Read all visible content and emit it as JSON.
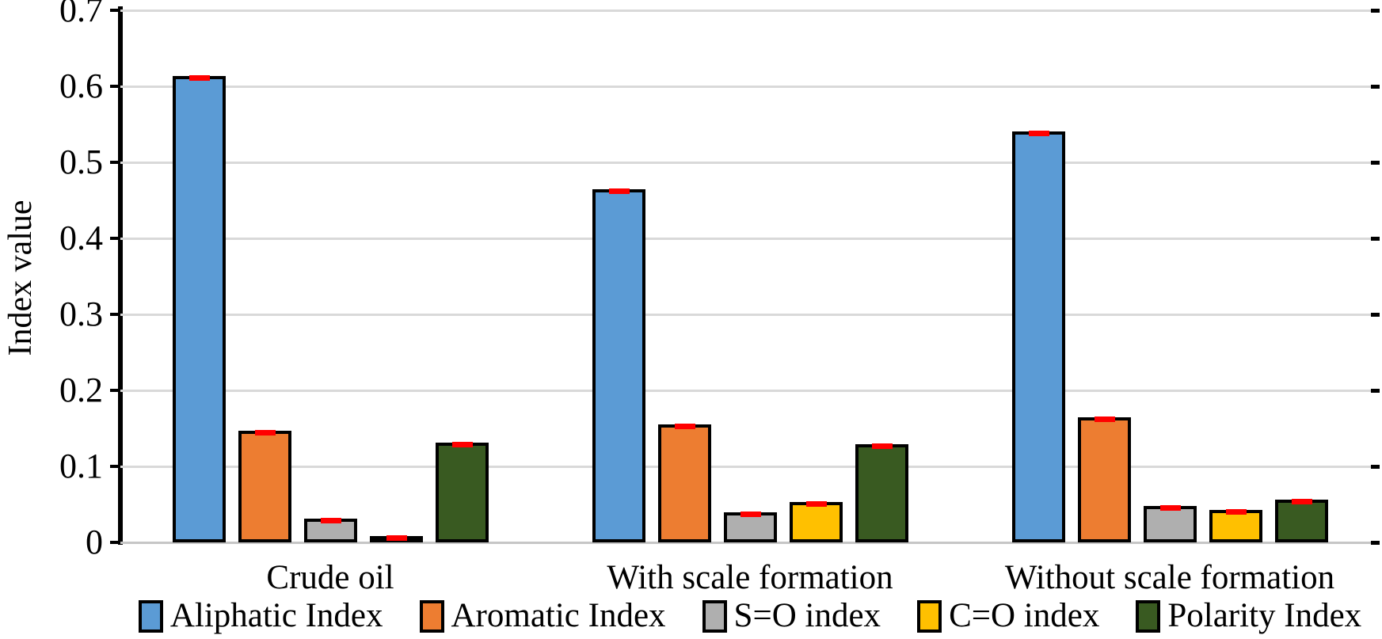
{
  "figure": {
    "background_color": "#FFFFFF",
    "font_color": "#000000"
  },
  "chart_data": {
    "type": "bar",
    "title": "",
    "xlabel": "",
    "ylabel": "Index value",
    "ylim": [
      0,
      0.7
    ],
    "ytick_step": 0.1,
    "yticks": [
      "0",
      "0.1",
      "0.2",
      "0.3",
      "0.4",
      "0.5",
      "0.6",
      "0.7"
    ],
    "grid": "horizontal",
    "gridline_color": "#D9D9D9",
    "axis_color": "#000000",
    "bar_border_color": "#000000",
    "error_bar_color": "#FF0000",
    "legend_position": "bottom",
    "categories": [
      "Crude oil",
      "With scale formation",
      "Without scale formation"
    ],
    "series": [
      {
        "name": "Aliphatic Index",
        "color": "#5B9BD5",
        "values": [
          0.614,
          0.465,
          0.541
        ]
      },
      {
        "name": "Aromatic Index",
        "color": "#ED7D31",
        "values": [
          0.147,
          0.155,
          0.165
        ]
      },
      {
        "name": "S=O index",
        "color": "#AFAFAF",
        "values": [
          0.031,
          0.04,
          0.048
        ]
      },
      {
        "name": "C=O index",
        "color": "#FFC000",
        "values": [
          0.004,
          0.053,
          0.043
        ]
      },
      {
        "name": "Polarity Index",
        "color": "#395A21",
        "values": [
          0.131,
          0.129,
          0.056
        ]
      }
    ]
  }
}
